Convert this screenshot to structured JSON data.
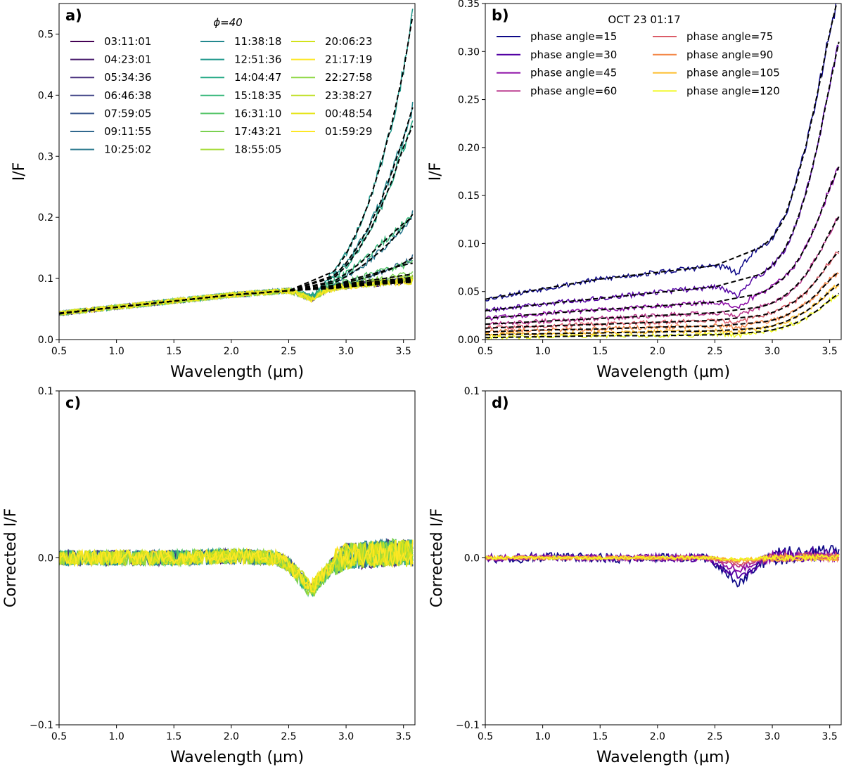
{
  "figure": {
    "background": "#ffffff"
  },
  "chart_data": [
    {
      "id": "a",
      "type": "line",
      "panel_label": "a)",
      "title": "ϕ=40",
      "xlabel": "Wavelength (µm)",
      "ylabel": "I/F",
      "xlim": [
        0.5,
        3.6
      ],
      "ylim": [
        0.0,
        0.55
      ],
      "xticks": [
        0.5,
        1.0,
        1.5,
        2.0,
        2.5,
        3.0,
        3.5
      ],
      "xtick_labels": [
        "0.5",
        "1.0",
        "1.5",
        "2.0",
        "2.5",
        "3.0",
        "3.5"
      ],
      "yticks": [
        0.0,
        0.1,
        0.2,
        0.3,
        0.4,
        0.5
      ],
      "ytick_labels": [
        "0.0",
        "0.1",
        "0.2",
        "0.3",
        "0.4",
        "0.5"
      ],
      "legend_location": "top-left",
      "legend_columns": 3,
      "model": {
        "style": "dashed",
        "color": "#000000",
        "description": "fitted continuum (black dashed) for each series"
      },
      "x": [
        0.5,
        1.0,
        1.5,
        2.0,
        2.5,
        2.6,
        2.7,
        2.8,
        2.9,
        3.0,
        3.1,
        3.2,
        3.3,
        3.4,
        3.5,
        3.58
      ],
      "series": [
        {
          "name": "03:11:01",
          "color": "#440154",
          "values": [
            0.042,
            0.053,
            0.063,
            0.073,
            0.08,
            0.074,
            0.066,
            0.078,
            0.085,
            0.087,
            0.089,
            0.091,
            0.092,
            0.094,
            0.095,
            0.096
          ]
        },
        {
          "name": "04:23:01",
          "color": "#481a6c",
          "values": [
            0.043,
            0.053,
            0.063,
            0.073,
            0.08,
            0.074,
            0.066,
            0.078,
            0.085,
            0.087,
            0.089,
            0.091,
            0.092,
            0.094,
            0.096,
            0.097
          ]
        },
        {
          "name": "05:34:36",
          "color": "#472f7d",
          "values": [
            0.043,
            0.053,
            0.063,
            0.073,
            0.08,
            0.074,
            0.066,
            0.078,
            0.085,
            0.088,
            0.09,
            0.092,
            0.093,
            0.095,
            0.097,
            0.098
          ]
        },
        {
          "name": "06:46:38",
          "color": "#414487",
          "values": [
            0.043,
            0.053,
            0.063,
            0.073,
            0.08,
            0.074,
            0.066,
            0.078,
            0.086,
            0.088,
            0.09,
            0.092,
            0.094,
            0.096,
            0.098,
            0.099
          ]
        },
        {
          "name": "07:59:05",
          "color": "#39568c",
          "values": [
            0.043,
            0.053,
            0.063,
            0.073,
            0.08,
            0.074,
            0.066,
            0.079,
            0.086,
            0.089,
            0.091,
            0.093,
            0.095,
            0.097,
            0.099,
            0.101
          ]
        },
        {
          "name": "09:11:55",
          "color": "#31688e",
          "values": [
            0.043,
            0.053,
            0.063,
            0.073,
            0.08,
            0.074,
            0.067,
            0.081,
            0.088,
            0.093,
            0.098,
            0.103,
            0.109,
            0.116,
            0.125,
            0.134
          ]
        },
        {
          "name": "10:25:02",
          "color": "#2a788e",
          "values": [
            0.043,
            0.053,
            0.063,
            0.073,
            0.08,
            0.075,
            0.068,
            0.084,
            0.093,
            0.103,
            0.115,
            0.129,
            0.145,
            0.163,
            0.185,
            0.205
          ]
        },
        {
          "name": "11:38:18",
          "color": "#23888e",
          "values": [
            0.043,
            0.053,
            0.063,
            0.073,
            0.08,
            0.076,
            0.07,
            0.089,
            0.105,
            0.125,
            0.152,
            0.185,
            0.225,
            0.275,
            0.33,
            0.38
          ]
        },
        {
          "name": "12:51:36",
          "color": "#1f988b",
          "values": [
            0.043,
            0.053,
            0.063,
            0.073,
            0.08,
            0.077,
            0.072,
            0.092,
            0.112,
            0.14,
            0.178,
            0.225,
            0.285,
            0.355,
            0.44,
            0.53
          ]
        },
        {
          "name": "14:04:47",
          "color": "#22a884",
          "values": [
            0.043,
            0.053,
            0.063,
            0.073,
            0.08,
            0.076,
            0.07,
            0.088,
            0.102,
            0.12,
            0.145,
            0.175,
            0.215,
            0.26,
            0.315,
            0.35
          ]
        },
        {
          "name": "15:18:35",
          "color": "#35b779",
          "values": [
            0.043,
            0.053,
            0.063,
            0.073,
            0.08,
            0.075,
            0.068,
            0.085,
            0.096,
            0.108,
            0.122,
            0.138,
            0.155,
            0.173,
            0.19,
            0.2
          ]
        },
        {
          "name": "16:31:10",
          "color": "#54c568",
          "values": [
            0.043,
            0.053,
            0.063,
            0.073,
            0.08,
            0.074,
            0.067,
            0.081,
            0.089,
            0.095,
            0.101,
            0.106,
            0.111,
            0.117,
            0.122,
            0.125
          ]
        },
        {
          "name": "17:43:21",
          "color": "#7ad151",
          "values": [
            0.043,
            0.053,
            0.063,
            0.073,
            0.08,
            0.074,
            0.066,
            0.079,
            0.087,
            0.091,
            0.094,
            0.097,
            0.099,
            0.102,
            0.105,
            0.107
          ]
        },
        {
          "name": "18:55:05",
          "color": "#a5db36",
          "values": [
            0.043,
            0.053,
            0.063,
            0.073,
            0.08,
            0.074,
            0.066,
            0.078,
            0.086,
            0.089,
            0.092,
            0.094,
            0.096,
            0.098,
            0.1,
            0.102
          ]
        },
        {
          "name": "20:06:23",
          "color": "#d2e21b",
          "values": [
            0.043,
            0.053,
            0.063,
            0.073,
            0.08,
            0.074,
            0.065,
            0.078,
            0.085,
            0.088,
            0.09,
            0.092,
            0.094,
            0.096,
            0.098,
            0.099
          ]
        },
        {
          "name": "21:17:19",
          "color": "#fde725",
          "values": [
            0.043,
            0.053,
            0.063,
            0.073,
            0.08,
            0.074,
            0.065,
            0.078,
            0.085,
            0.087,
            0.089,
            0.091,
            0.093,
            0.095,
            0.097,
            0.098
          ]
        },
        {
          "name": "22:27:58",
          "color": "#8fd744",
          "values": [
            0.043,
            0.053,
            0.063,
            0.073,
            0.08,
            0.074,
            0.065,
            0.078,
            0.085,
            0.087,
            0.089,
            0.091,
            0.093,
            0.094,
            0.096,
            0.097
          ]
        },
        {
          "name": "23:38:27",
          "color": "#c0df25",
          "values": [
            0.043,
            0.053,
            0.063,
            0.073,
            0.08,
            0.074,
            0.065,
            0.078,
            0.085,
            0.087,
            0.089,
            0.09,
            0.092,
            0.094,
            0.095,
            0.096
          ]
        },
        {
          "name": "00:48:54",
          "color": "#e5e419",
          "values": [
            0.043,
            0.053,
            0.063,
            0.073,
            0.08,
            0.074,
            0.065,
            0.078,
            0.084,
            0.086,
            0.088,
            0.09,
            0.091,
            0.093,
            0.094,
            0.095
          ]
        },
        {
          "name": "01:59:29",
          "color": "#fde725",
          "values": [
            0.043,
            0.053,
            0.063,
            0.073,
            0.08,
            0.074,
            0.065,
            0.078,
            0.084,
            0.086,
            0.088,
            0.089,
            0.091,
            0.092,
            0.093,
            0.094
          ]
        }
      ]
    },
    {
      "id": "b",
      "type": "line",
      "panel_label": "b)",
      "title": "OCT 23 01:17",
      "xlabel": "Wavelength (µm)",
      "ylabel": "I/F",
      "xlim": [
        0.5,
        3.6
      ],
      "ylim": [
        0.0,
        0.35
      ],
      "xticks": [
        0.5,
        1.0,
        1.5,
        2.0,
        2.5,
        3.0,
        3.5
      ],
      "xtick_labels": [
        "0.5",
        "1.0",
        "1.5",
        "2.0",
        "2.5",
        "3.0",
        "3.5"
      ],
      "yticks": [
        0.0,
        0.05,
        0.1,
        0.15,
        0.2,
        0.25,
        0.3,
        0.35
      ],
      "ytick_labels": [
        "0.00",
        "0.05",
        "0.10",
        "0.15",
        "0.20",
        "0.25",
        "0.30",
        "0.35"
      ],
      "legend_location": "top-left",
      "legend_columns": 2,
      "model": {
        "style": "dashed",
        "color": "#000000",
        "description": "fitted continuum (black dashed) for each series"
      },
      "x": [
        0.5,
        1.0,
        1.5,
        2.0,
        2.5,
        2.6,
        2.7,
        2.8,
        2.9,
        3.0,
        3.1,
        3.2,
        3.3,
        3.4,
        3.5,
        3.58
      ],
      "series": [
        {
          "name": "phase angle=15",
          "color": "#0d0887",
          "values": [
            0.042,
            0.053,
            0.063,
            0.07,
            0.077,
            0.075,
            0.068,
            0.088,
            0.096,
            0.106,
            0.125,
            0.16,
            0.205,
            0.26,
            0.32,
            0.36
          ]
        },
        {
          "name": "phase angle=30",
          "color": "#5302a3",
          "values": [
            0.03,
            0.037,
            0.043,
            0.049,
            0.055,
            0.052,
            0.045,
            0.06,
            0.068,
            0.077,
            0.092,
            0.118,
            0.155,
            0.205,
            0.265,
            0.31
          ]
        },
        {
          "name": "phase angle=45",
          "color": "#8b0aa5",
          "values": [
            0.022,
            0.027,
            0.031,
            0.035,
            0.039,
            0.037,
            0.032,
            0.042,
            0.048,
            0.055,
            0.064,
            0.078,
            0.098,
            0.125,
            0.158,
            0.18
          ]
        },
        {
          "name": "phase angle=60",
          "color": "#b83289",
          "values": [
            0.016,
            0.019,
            0.022,
            0.025,
            0.028,
            0.027,
            0.024,
            0.03,
            0.034,
            0.038,
            0.045,
            0.055,
            0.069,
            0.088,
            0.112,
            0.128
          ]
        },
        {
          "name": "phase angle=75",
          "color": "#db5c68",
          "values": [
            0.012,
            0.014,
            0.016,
            0.018,
            0.02,
            0.019,
            0.017,
            0.022,
            0.025,
            0.028,
            0.033,
            0.04,
            0.05,
            0.064,
            0.081,
            0.092
          ]
        },
        {
          "name": "phase angle=90",
          "color": "#f48849",
          "values": [
            0.008,
            0.01,
            0.011,
            0.013,
            0.014,
            0.014,
            0.012,
            0.016,
            0.018,
            0.02,
            0.024,
            0.03,
            0.038,
            0.049,
            0.062,
            0.071
          ]
        },
        {
          "name": "phase angle=105",
          "color": "#febd2a",
          "values": [
            0.005,
            0.006,
            0.007,
            0.008,
            0.009,
            0.009,
            0.008,
            0.01,
            0.012,
            0.014,
            0.018,
            0.023,
            0.03,
            0.039,
            0.05,
            0.058
          ]
        },
        {
          "name": "phase angle=120",
          "color": "#f0f921",
          "values": [
            0.002,
            0.003,
            0.004,
            0.004,
            0.005,
            0.005,
            0.004,
            0.006,
            0.008,
            0.01,
            0.013,
            0.017,
            0.023,
            0.031,
            0.041,
            0.048
          ]
        }
      ]
    },
    {
      "id": "c",
      "type": "line",
      "panel_label": "c)",
      "title": "",
      "xlabel": "Wavelength (µm)",
      "ylabel": "Corrected I/F",
      "xlim": [
        0.5,
        3.6
      ],
      "ylim": [
        -0.1,
        0.1
      ],
      "xticks": [
        0.5,
        1.0,
        1.5,
        2.0,
        2.5,
        3.0,
        3.5
      ],
      "xtick_labels": [
        "0.5",
        "1.0",
        "1.5",
        "2.0",
        "2.5",
        "3.0",
        "3.5"
      ],
      "yticks": [
        -0.1,
        0.0,
        0.1
      ],
      "ytick_labels": [
        "−0.1",
        "0.0",
        "0.1"
      ],
      "series_source": "same 20 series as panel a), continuum-corrected",
      "x": [
        0.5,
        1.0,
        1.5,
        2.0,
        2.4,
        2.5,
        2.6,
        2.7,
        2.8,
        2.9,
        3.0,
        3.2,
        3.4,
        3.58
      ],
      "profile": [
        0.0,
        0.0,
        0.0,
        0.001,
        0.0,
        -0.004,
        -0.012,
        -0.019,
        -0.011,
        -0.003,
        0.001,
        0.002,
        0.003,
        0.003
      ],
      "series_colors": [
        "#440154",
        "#481a6c",
        "#472f7d",
        "#414487",
        "#39568c",
        "#31688e",
        "#2a788e",
        "#23888e",
        "#1f988b",
        "#22a884",
        "#35b779",
        "#54c568",
        "#7ad151",
        "#a5db36",
        "#d2e21b",
        "#fde725",
        "#8fd744",
        "#c0df25",
        "#e5e419",
        "#fde725"
      ]
    },
    {
      "id": "d",
      "type": "line",
      "panel_label": "d)",
      "title": "",
      "xlabel": "Wavelength (µm)",
      "ylabel": "Corrected I/F",
      "xlim": [
        0.5,
        3.6
      ],
      "ylim": [
        -0.1,
        0.1
      ],
      "xticks": [
        0.5,
        1.0,
        1.5,
        2.0,
        2.5,
        3.0,
        3.5
      ],
      "xtick_labels": [
        "0.5",
        "1.0",
        "1.5",
        "2.0",
        "2.5",
        "3.0",
        "3.5"
      ],
      "yticks": [
        -0.1,
        0.0,
        0.1
      ],
      "ytick_labels": [
        "−0.1",
        "0.0",
        "0.1"
      ],
      "series_source": "same 8 series as panel b), continuum-corrected",
      "x": [
        0.5,
        1.0,
        1.5,
        2.0,
        2.4,
        2.5,
        2.6,
        2.7,
        2.8,
        2.9,
        3.0,
        3.2,
        3.4,
        3.58
      ],
      "profile": [
        0.0,
        0.0,
        0.0,
        0.0,
        0.0,
        -0.003,
        -0.01,
        -0.016,
        -0.011,
        -0.004,
        0.001,
        0.002,
        0.003,
        0.002
      ],
      "depth_scale": [
        1.0,
        0.7,
        0.45,
        0.3,
        0.2,
        0.12,
        0.08,
        0.05
      ],
      "series_colors": [
        "#0d0887",
        "#5302a3",
        "#8b0aa5",
        "#b83289",
        "#db5c68",
        "#f48849",
        "#febd2a",
        "#f0f921"
      ]
    }
  ]
}
